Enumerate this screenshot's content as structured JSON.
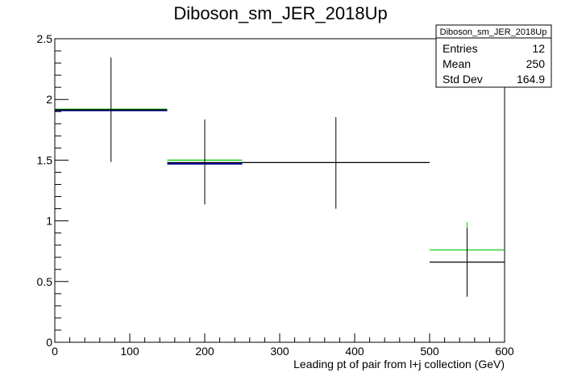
{
  "chart_data": {
    "type": "histogram",
    "title": "Diboson_sm_JER_2018Up",
    "xlabel": "Leading pt of pair from l+j collection (GeV)",
    "ylabel": "",
    "xlim": [
      0,
      600
    ],
    "ylim": [
      0,
      2.5
    ],
    "x_ticks": [
      0,
      100,
      200,
      300,
      400,
      500,
      600
    ],
    "y_ticks": [
      0,
      0.5,
      1,
      1.5,
      2,
      2.5
    ],
    "x_tick_labels": [
      "0",
      "100",
      "200",
      "300",
      "400",
      "500",
      "600"
    ],
    "y_tick_labels": [
      "0",
      "0.5",
      "1",
      "1.5",
      "2",
      "2.5"
    ],
    "grid": false,
    "series": [
      {
        "color": "#000000",
        "bins": [
          {
            "x_low": 0,
            "x_high": 150,
            "value": 1.915,
            "err_low": 0.43,
            "err_high": 0.43
          },
          {
            "x_low": 150,
            "x_high": 250,
            "value": 1.48,
            "err_low": 0.345,
            "err_high": 0.355
          },
          {
            "x_low": 250,
            "x_high": 500,
            "value": 1.48,
            "err_low": 0.38,
            "err_high": 0.375
          },
          {
            "x_low": 500,
            "x_high": 600,
            "value": 0.66,
            "err_low": 0.285,
            "err_high": 0.28
          }
        ]
      },
      {
        "color": "#00cc00",
        "bins": [
          {
            "x_low": 0,
            "x_high": 150,
            "value": 1.92
          },
          {
            "x_low": 150,
            "x_high": 250,
            "value": 1.5
          },
          {
            "x_low": 500,
            "x_high": 600,
            "value": 0.76,
            "err_low": 0.0,
            "err_high": 0.23
          }
        ]
      },
      {
        "color": "#000099",
        "bins": [
          {
            "x_low": 0,
            "x_high": 150,
            "value": 1.91
          },
          {
            "x_low": 150,
            "x_high": 250,
            "value": 1.47
          }
        ]
      }
    ],
    "stats_box": {
      "title": "Diboson_sm_JER_2018Up",
      "rows": [
        {
          "label": "Entries",
          "value": "12"
        },
        {
          "label": "Mean",
          "value": "250"
        },
        {
          "label": "Std Dev",
          "value": "164.9"
        }
      ],
      "placement": "top-right"
    }
  }
}
